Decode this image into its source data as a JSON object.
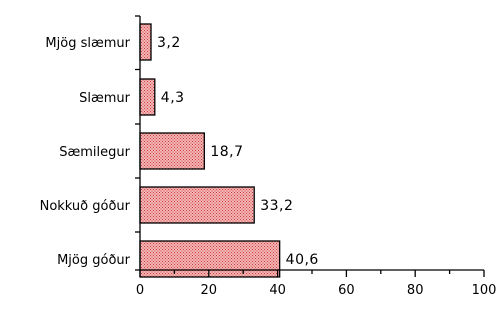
{
  "chart_data": {
    "type": "bar",
    "orientation": "horizontal",
    "categories": [
      "Mjög slæmur",
      "Slæmur",
      "Sæmilegur",
      "Nokkuð góður",
      "Mjög góður"
    ],
    "values": [
      3.2,
      4.3,
      18.7,
      33.2,
      40.6
    ],
    "value_labels": [
      "3,2",
      "4,3",
      "18,7",
      "33,2",
      "40,6"
    ],
    "xlim": [
      0,
      100
    ],
    "x_ticks": [
      0,
      20,
      40,
      60,
      80,
      100
    ],
    "x_tick_labels": [
      "0",
      "20",
      "40",
      "60",
      "80",
      "100"
    ],
    "title": "",
    "xlabel": "",
    "ylabel": "",
    "grid": false,
    "legend": "none",
    "bar_fill": "#f4b6b6",
    "bar_pattern_dot": "#cc3b3b",
    "bar_stroke": "#000000"
  }
}
